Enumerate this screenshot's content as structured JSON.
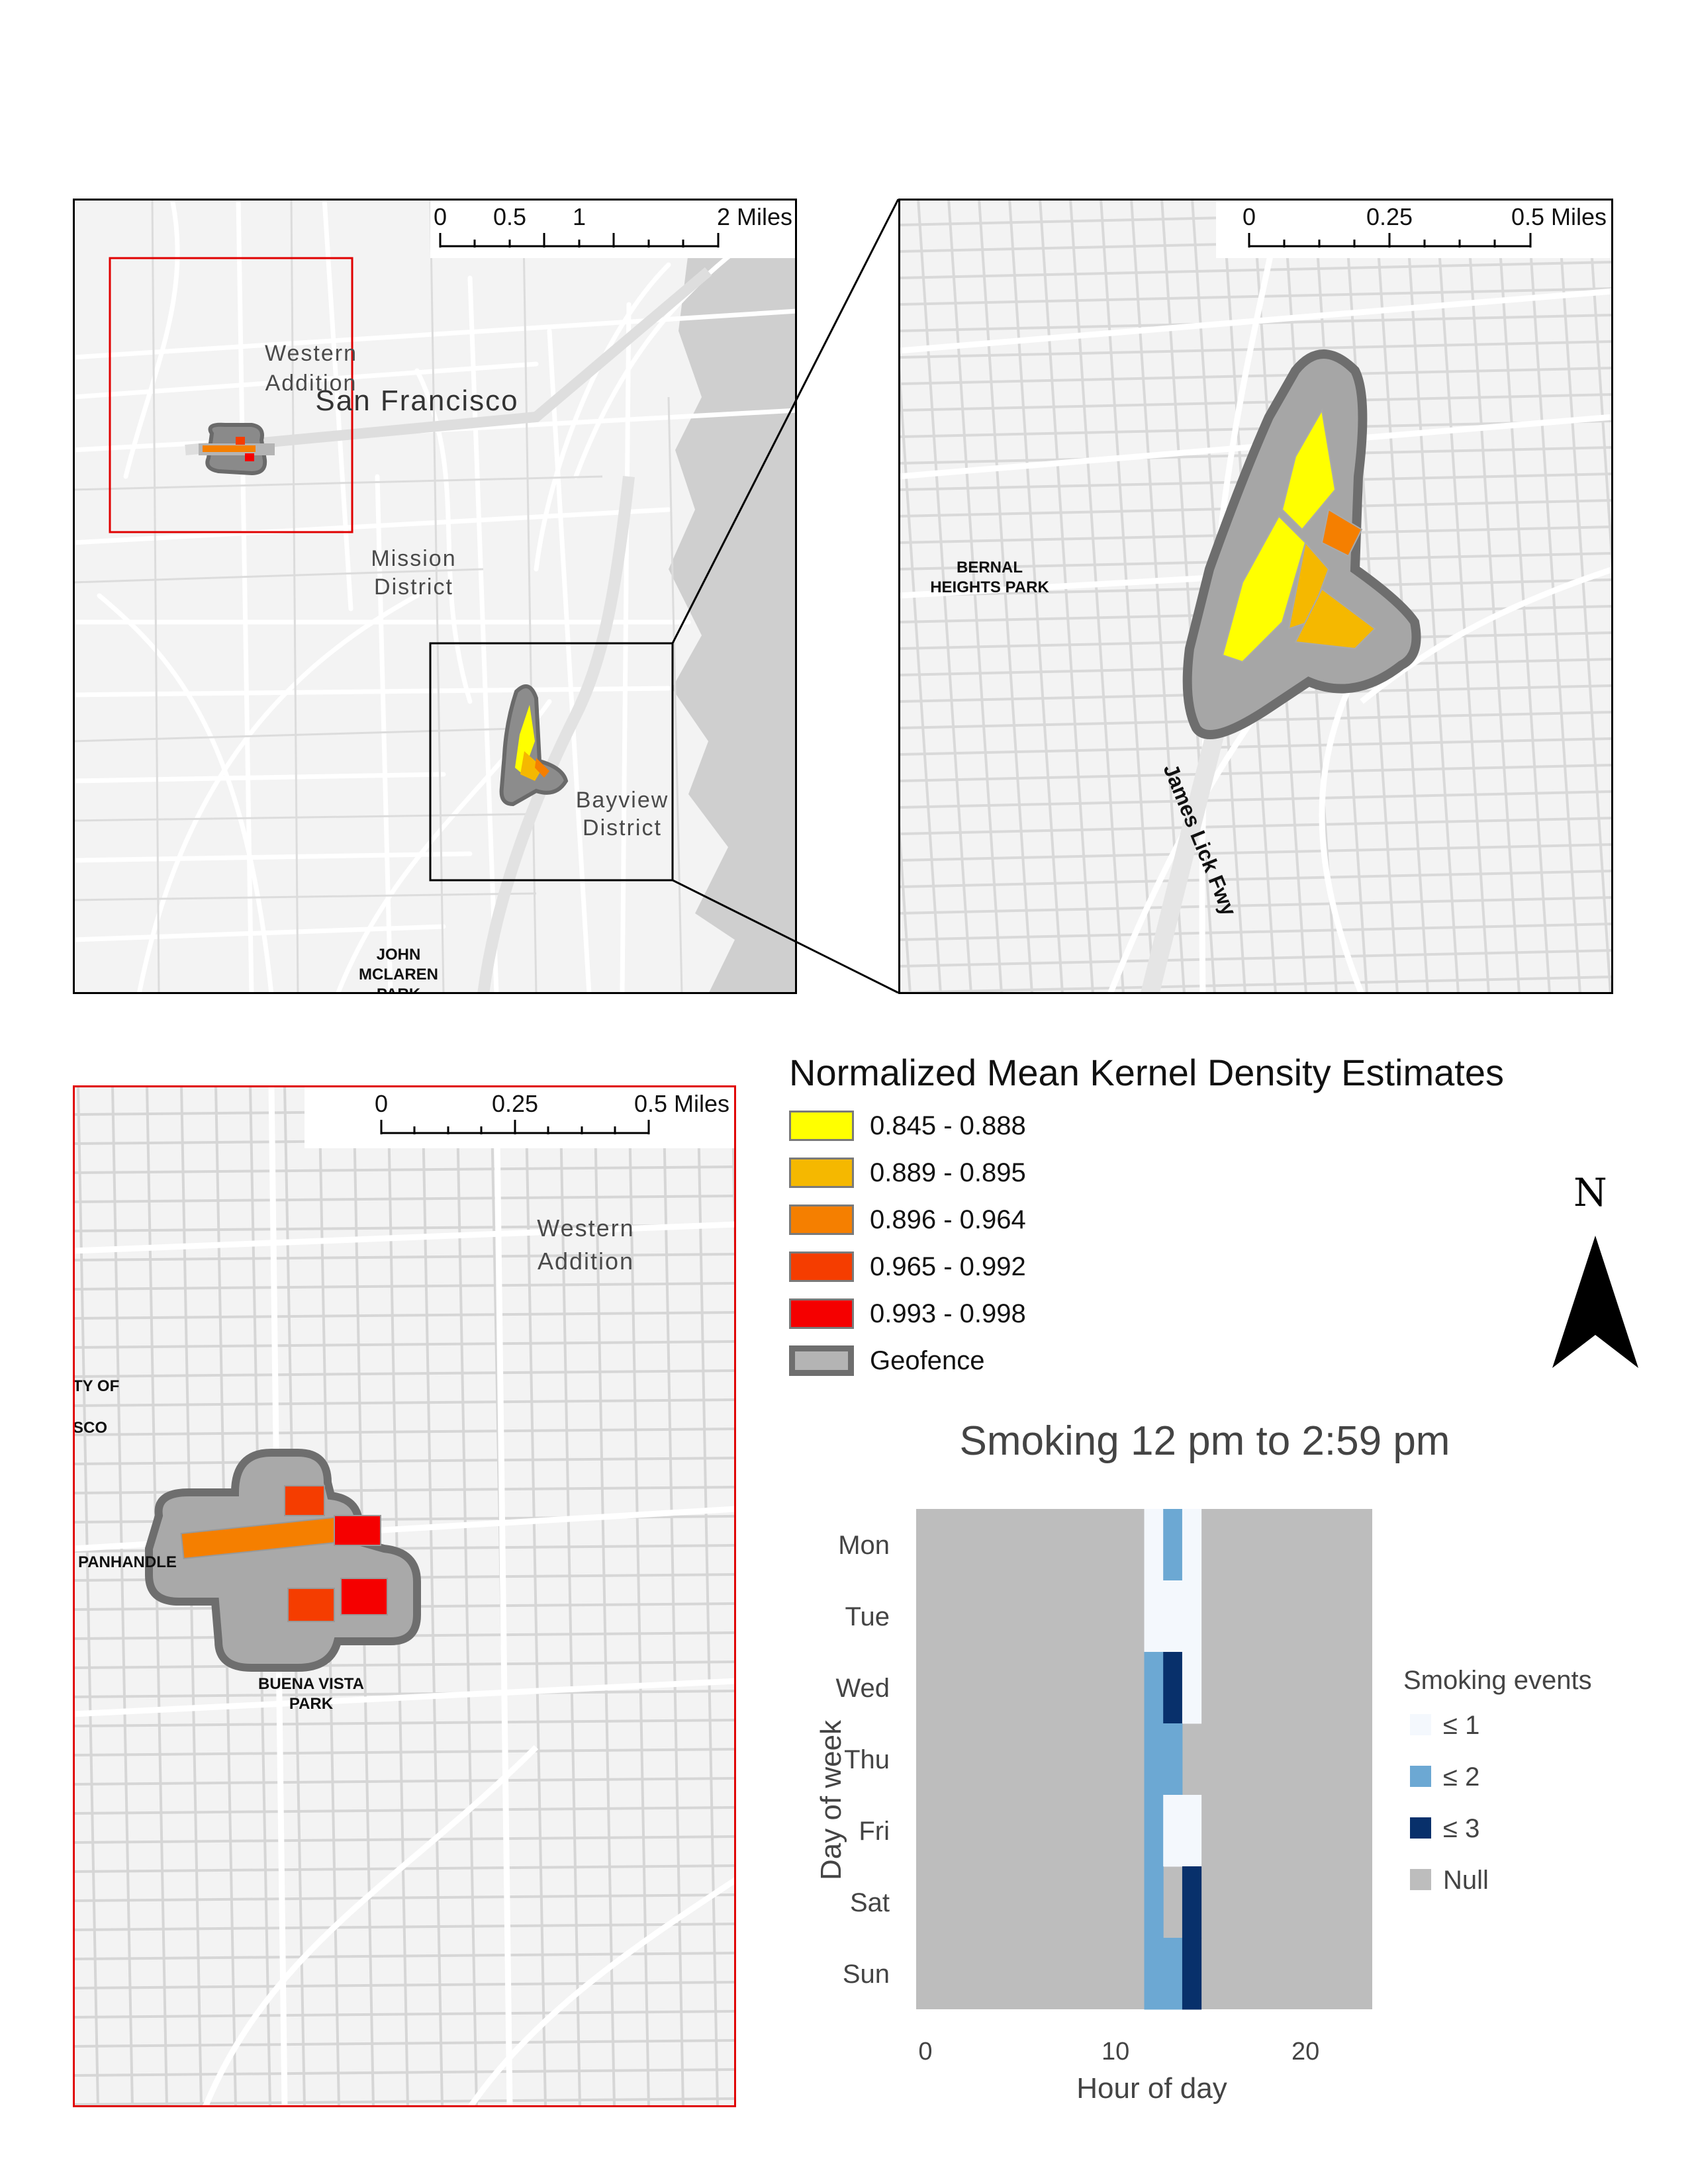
{
  "maps": {
    "overview": {
      "scale_ticks": [
        "0",
        "0.5",
        "1",
        "2 Miles"
      ],
      "labels": {
        "western_addition": [
          "Western",
          "Addition"
        ],
        "san_francisco": "San Francisco",
        "mission_district": [
          "Mission",
          "District"
        ],
        "bayview_district": [
          "Bayview",
          "District"
        ],
        "john_mclaren_park": [
          "JOHN",
          "MCLAREN",
          "PARK"
        ]
      }
    },
    "inset_bayview": {
      "scale_ticks": [
        "0",
        "0.25",
        "0.5 Miles"
      ],
      "labels": {
        "bernal_heights_park": [
          "BERNAL",
          "HEIGHTS PARK"
        ],
        "james_lick_fwy": "James Lick Fwy"
      }
    },
    "inset_western": {
      "scale_ticks": [
        "0",
        "0.25",
        "0.5 Miles"
      ],
      "labels": {
        "western_addition": [
          "Western",
          "Addition"
        ],
        "city_of_fragment": [
          "TY OF",
          "SCO"
        ],
        "panhandle": "PANHANDLE",
        "buena_vista_park": [
          "BUENA VISTA",
          "PARK"
        ]
      }
    }
  },
  "legend": {
    "title": "Normalized Mean Kernel Density Estimates",
    "items": [
      {
        "label": "0.845 - 0.888",
        "color": "#ffff00"
      },
      {
        "label": "0.889 - 0.895",
        "color": "#f5b800"
      },
      {
        "label": "0.896 - 0.964",
        "color": "#f57f00"
      },
      {
        "label": "0.965 - 0.992",
        "color": "#f53d00"
      },
      {
        "label": "0.993 - 0.998",
        "color": "#f50000"
      },
      {
        "label": "Geofence",
        "color": "#b4b4b4",
        "border": "#6e6e6e"
      }
    ]
  },
  "north_arrow": {
    "label": "N"
  },
  "chart_data": {
    "type": "heatmap",
    "title": "Smoking 12 pm to 2:59 pm",
    "xlabel": "Hour of day",
    "ylabel": "Day of week",
    "x_ticks": [
      "0",
      "10",
      "20"
    ],
    "xlim": [
      0,
      24
    ],
    "y_categories": [
      "Mon",
      "Tue",
      "Wed",
      "Thu",
      "Fri",
      "Sat",
      "Sun"
    ],
    "legend_title": "Smoking events",
    "legend": [
      {
        "label": "≤ 1",
        "value": 1,
        "color": "#f4f8fd"
      },
      {
        "label": "≤ 2",
        "value": 2,
        "color": "#6ca8d3"
      },
      {
        "label": "≤ 3",
        "value": 3,
        "color": "#08306b"
      },
      {
        "label": "Null",
        "value": null,
        "color": "#bdbdbd"
      }
    ],
    "null_color": "#bdbdbd",
    "cells": [
      {
        "day": "Mon",
        "hour": 12,
        "value": 1
      },
      {
        "day": "Mon",
        "hour": 13,
        "value": 2
      },
      {
        "day": "Mon",
        "hour": 14,
        "value": 1
      },
      {
        "day": "Tue",
        "hour": 12,
        "value": 1
      },
      {
        "day": "Tue",
        "hour": 13,
        "value": 1
      },
      {
        "day": "Tue",
        "hour": 14,
        "value": 1
      },
      {
        "day": "Wed",
        "hour": 12,
        "value": 2
      },
      {
        "day": "Wed",
        "hour": 13,
        "value": 3
      },
      {
        "day": "Wed",
        "hour": 14,
        "value": 1
      },
      {
        "day": "Thu",
        "hour": 12,
        "value": 2
      },
      {
        "day": "Thu",
        "hour": 13,
        "value": 2
      },
      {
        "day": "Fri",
        "hour": 12,
        "value": 2
      },
      {
        "day": "Fri",
        "hour": 13,
        "value": 1
      },
      {
        "day": "Fri",
        "hour": 14,
        "value": 1
      },
      {
        "day": "Sat",
        "hour": 12,
        "value": 2
      },
      {
        "day": "Sat",
        "hour": 14,
        "value": 3
      },
      {
        "day": "Sun",
        "hour": 12,
        "value": 2
      },
      {
        "day": "Sun",
        "hour": 13,
        "value": 2
      },
      {
        "day": "Sun",
        "hour": 14,
        "value": 3
      }
    ]
  }
}
